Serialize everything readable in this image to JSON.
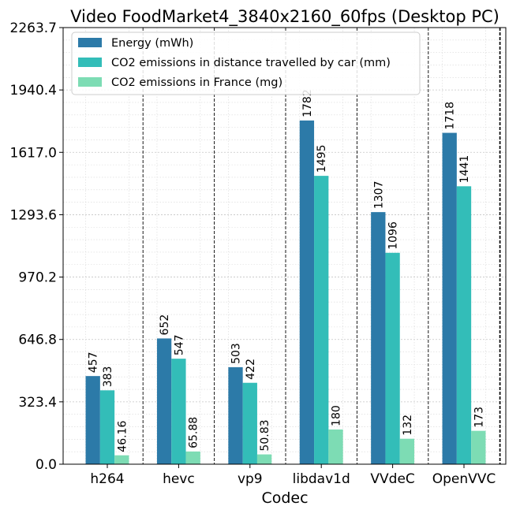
{
  "chart_data": {
    "type": "bar",
    "title": "Video FoodMarket4_3840x2160_60fps (Desktop PC)",
    "xlabel": "Codec",
    "ylabel": "",
    "ylim": [
      0,
      2263.7
    ],
    "yticks": [
      "0.0",
      "323.4",
      "646.8",
      "970.2",
      "1293.6",
      "1617.0",
      "1940.4",
      "2263.7"
    ],
    "categories": [
      "h264",
      "hevc",
      "vp9",
      "libdav1d",
      "VVdeC",
      "OpenVVC"
    ],
    "series": [
      {
        "name": "Energy (mWh)",
        "color": "#2c7aa8",
        "values": [
          457,
          652,
          503,
          1782,
          1307,
          1718
        ],
        "labels": [
          "457",
          "652",
          "503",
          "1782",
          "1307",
          "1718"
        ]
      },
      {
        "name": "CO2 emissions in distance travelled by car (mm)",
        "color": "#33bdb8",
        "values": [
          383,
          547,
          422,
          1495,
          1096,
          1441
        ],
        "labels": [
          "383",
          "547",
          "422",
          "1495",
          "1096",
          "1441"
        ]
      },
      {
        "name": "CO2 emissions in France (mg)",
        "color": "#7ddcb4",
        "values": [
          46.16,
          65.88,
          50.83,
          180,
          132,
          173
        ],
        "labels": [
          "46.16",
          "65.88",
          "50.83",
          "180",
          "132",
          "173"
        ]
      }
    ],
    "grid": true,
    "legend_position": "top-left"
  }
}
